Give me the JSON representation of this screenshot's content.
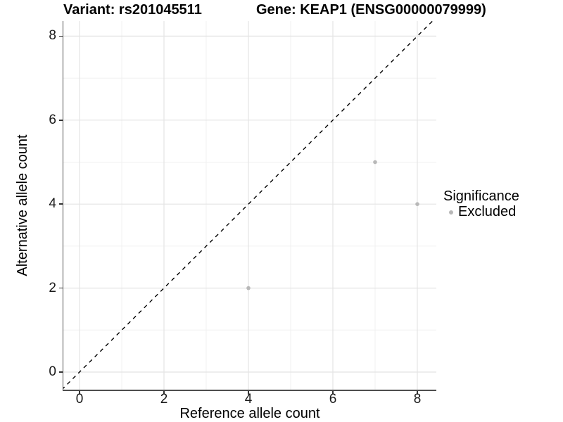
{
  "figure": {
    "title_left": "Variant: rs201045511",
    "title_right": "Gene: KEAP1 (ENSG00000079999)"
  },
  "chart_data": {
    "type": "scatter",
    "title": "Variant: rs201045511    Gene: KEAP1 (ENSG00000079999)",
    "xlabel": "Reference allele count",
    "ylabel": "Alternative allele count",
    "xlim": [
      -0.4,
      8.45
    ],
    "ylim": [
      -0.42,
      8.36
    ],
    "xticks": [
      0,
      2,
      4,
      6,
      8
    ],
    "yticks": [
      0,
      2,
      4,
      6,
      8
    ],
    "minor_xticks": [
      1,
      3,
      5,
      7
    ],
    "minor_yticks": [
      1,
      3,
      5,
      7
    ],
    "grid": true,
    "identity_line": {
      "style": "dashed",
      "from": [
        -0.42,
        -0.42
      ],
      "to": [
        8.45,
        8.45
      ],
      "color": "#000000"
    },
    "series": [
      {
        "name": "Excluded",
        "color": "#b8b8b8",
        "points": [
          [
            4,
            2
          ],
          [
            7,
            5
          ],
          [
            8,
            4
          ]
        ]
      }
    ],
    "legend": {
      "title": "Significance",
      "position": "right",
      "items": [
        {
          "label": "Excluded",
          "color": "#b8b8b8"
        }
      ]
    }
  },
  "colors": {
    "background": "#ffffff",
    "grid_major": "#e4e4e4",
    "grid_minor": "#f0f0f0",
    "axis_line": "#4d4d4d",
    "point": "#b8b8b8",
    "identity_line": "#000000"
  }
}
